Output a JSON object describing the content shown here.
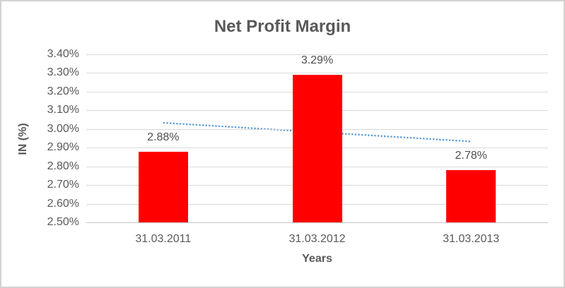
{
  "chart_data": {
    "type": "bar",
    "title": "Net Profit Margin",
    "categories": [
      "31.03.2011",
      "31.03.2012",
      "31.03.2013"
    ],
    "values": [
      2.88,
      3.29,
      2.78
    ],
    "data_labels": [
      "2.88%",
      "3.29%",
      "2.78%"
    ],
    "xlabel": "Years",
    "ylabel": "IN (%)",
    "ylim": [
      2.5,
      3.4
    ],
    "ytick_step": 0.1,
    "ytick_labels": [
      "3.40%",
      "3.30%",
      "3.20%",
      "3.10%",
      "3.00%",
      "2.90%",
      "2.80%",
      "2.70%",
      "2.60%",
      "2.50%"
    ],
    "grid": true,
    "legend": "none",
    "bar_color": "#ff0000",
    "trendline": {
      "type": "linear",
      "style": "dotted",
      "start_value": 3.0333,
      "end_value": 2.9333,
      "color": "#5b9bd5"
    },
    "colors": {
      "title_text": "#595959",
      "axis_text": "#595959",
      "gridline": "#d9d9d9",
      "axis_line": "#c6c6c6",
      "background": "#ffffff",
      "border": "#d5d2d2"
    }
  }
}
